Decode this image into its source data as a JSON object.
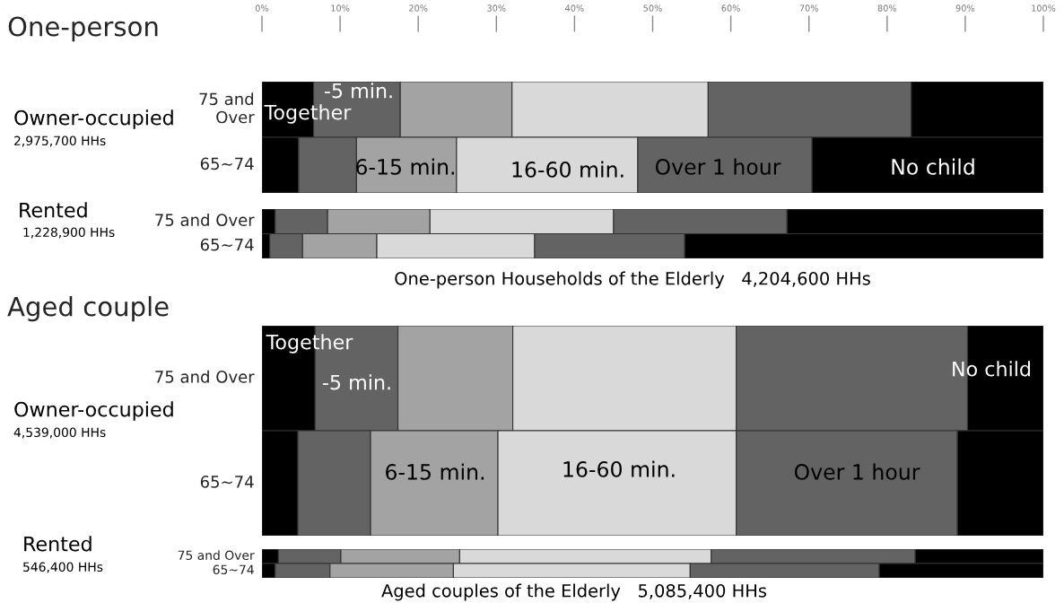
{
  "chart_data": [
    {
      "type": "bar",
      "title": "One-person",
      "orientation": "horizontal",
      "stacked": true,
      "categories": [
        "75 and\nOver",
        "65∼74"
      ],
      "series": [
        {
          "color": "#000000",
          "values": [
            6.6,
            4.7
          ]
        },
        {
          "color": "#636363",
          "values": [
            11.1,
            7.4
          ]
        },
        {
          "color": "#a3a3a3",
          "values": [
            14.3,
            12.8
          ]
        },
        {
          "color": "#d9d9d9",
          "values": [
            25.1,
            23.2
          ]
        },
        {
          "color": "#636363",
          "values": [
            26.0,
            22.3
          ]
        },
        {
          "color": "#000000",
          "values": [
            16.9,
            29.6
          ]
        }
      ],
      "xlim": [
        0,
        100
      ],
      "xticks": [
        {
          "value": 0,
          "label": "0%"
        },
        {
          "value": 10,
          "label": "10%"
        },
        {
          "value": 20,
          "label": "20%"
        },
        {
          "value": 30,
          "label": "30%"
        },
        {
          "value": 40,
          "label": "40%"
        },
        {
          "value": 50,
          "label": "50%"
        },
        {
          "value": 60,
          "label": "60%"
        },
        {
          "value": 70,
          "label": "70%"
        },
        {
          "value": 80,
          "label": "80%"
        },
        {
          "value": 90,
          "label": "90%"
        },
        {
          "value": 100,
          "label": "100%"
        }
      ],
      "annotations": [
        "Owner-occupied",
        "2,975,700 HHs",
        "Together",
        "-5 min.",
        "6-15 min.",
        "16-60 min.",
        "Over 1 hour",
        "No child"
      ]
    },
    {
      "type": "bar",
      "orientation": "horizontal",
      "stacked": true,
      "categories": [
        "75 and Over",
        "65∼74"
      ],
      "series": [
        {
          "color": "#000000",
          "values": [
            1.7,
            1.0
          ]
        },
        {
          "color": "#636363",
          "values": [
            6.7,
            4.2
          ]
        },
        {
          "color": "#a3a3a3",
          "values": [
            13.1,
            9.5
          ]
        },
        {
          "color": "#d9d9d9",
          "values": [
            23.5,
            20.2
          ]
        },
        {
          "color": "#636363",
          "values": [
            22.2,
            19.2
          ]
        },
        {
          "color": "#000000",
          "values": [
            32.8,
            45.9
          ]
        }
      ],
      "xlim": [
        0,
        100
      ],
      "tick_labels": "y",
      "annotations": [
        "Rented",
        "1,228,900 HHs",
        "One-person Households of the Elderly   4,204,600 HHs"
      ]
    },
    {
      "type": "bar",
      "title": "Aged couple",
      "orientation": "horizontal",
      "stacked": true,
      "categories": [
        "75 and Over",
        "65∼74"
      ],
      "series": [
        {
          "color": "#000000",
          "values": [
            6.8,
            4.6
          ]
        },
        {
          "color": "#636363",
          "values": [
            10.6,
            9.3
          ]
        },
        {
          "color": "#a3a3a3",
          "values": [
            14.7,
            16.3
          ]
        },
        {
          "color": "#d9d9d9",
          "values": [
            28.6,
            30.5
          ]
        },
        {
          "color": "#636363",
          "values": [
            29.6,
            28.3
          ]
        },
        {
          "color": "#000000",
          "values": [
            9.7,
            11.0
          ]
        }
      ],
      "xlim": [
        0,
        100
      ],
      "tick_labels": "y",
      "annotations": [
        "Owner-occupied",
        "4,539,000 HHs",
        "Together",
        "-5 min.",
        "No child",
        "6-15 min.",
        "16-60 min.",
        "Over 1 hour"
      ]
    },
    {
      "type": "bar",
      "orientation": "horizontal",
      "stacked": true,
      "categories": [
        "75 and Over",
        "65∼74"
      ],
      "series": [
        {
          "color": "#000000",
          "values": [
            2.1,
            1.7
          ]
        },
        {
          "color": "#636363",
          "values": [
            8.0,
            7.0
          ]
        },
        {
          "color": "#a3a3a3",
          "values": [
            15.2,
            15.8
          ]
        },
        {
          "color": "#d9d9d9",
          "values": [
            32.2,
            30.3
          ]
        },
        {
          "color": "#636363",
          "values": [
            26.1,
            24.2
          ]
        },
        {
          "color": "#000000",
          "values": [
            16.4,
            21.0
          ]
        }
      ],
      "xlim": [
        0,
        100
      ],
      "tick_labels": "y",
      "annotations": [
        "Rented",
        "546,400 HHs",
        "Aged couples of the Elderly   5,085,400 HHs"
      ]
    }
  ]
}
